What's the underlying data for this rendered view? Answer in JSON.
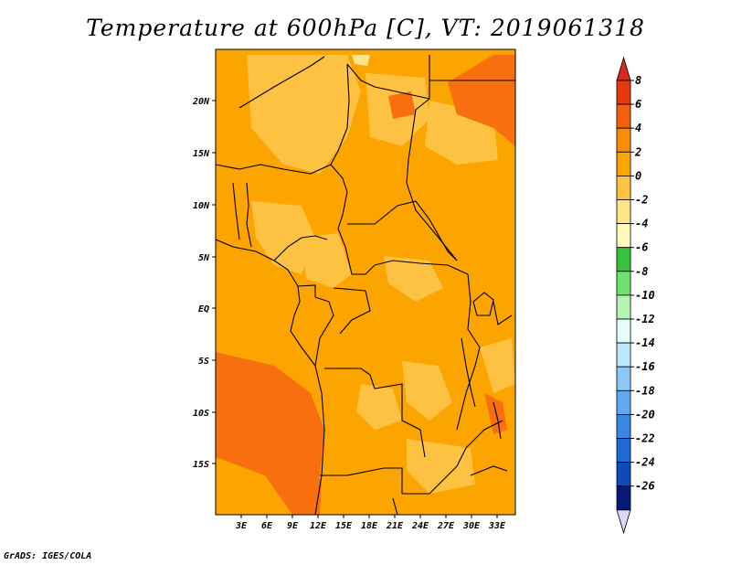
{
  "title": "Temperature at 600hPa [C], VT: 2019061318",
  "footer": "GrADS: IGES/COLA",
  "map": {
    "lon_labels": [
      "3E",
      "6E",
      "9E",
      "12E",
      "15E",
      "18E",
      "21E",
      "24E",
      "27E",
      "30E",
      "33E"
    ],
    "lat_labels": [
      "20N",
      "15N",
      "10N",
      "5N",
      "EQ",
      "5S",
      "10S",
      "15S"
    ],
    "colors": {
      "base": "#fca400",
      "warm_light": "#fdc242",
      "warm_dark": "#f86f0f",
      "cool_pale": "#fde487",
      "border": "#000000"
    }
  },
  "colorbar": {
    "labels": [
      "8",
      "6",
      "4",
      "2",
      "0",
      "-2",
      "-4",
      "-6",
      "-8",
      "-10",
      "-12",
      "-14",
      "-16",
      "-18",
      "-20",
      "-22",
      "-24",
      "-26"
    ],
    "colors": [
      "#e8380d",
      "#f55e0a",
      "#fb8a05",
      "#fca400",
      "#fdc242",
      "#fde487",
      "#fef8b8",
      "#36c13f",
      "#6ee46e",
      "#b4f5b4",
      "#e6fbfb",
      "#bde8fb",
      "#8fc8f6",
      "#62a8f0",
      "#3a86e6",
      "#1f68d8",
      "#0d4cb8",
      "#081879"
    ],
    "top_arrow_color": "#d72a1c",
    "bottom_arrow_color": "#dcd8f8"
  }
}
